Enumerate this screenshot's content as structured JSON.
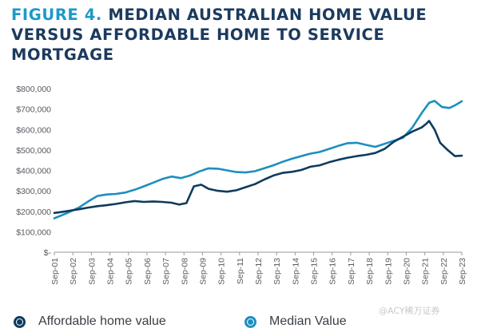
{
  "figure": {
    "label": "FIGURE 4.",
    "title": "MEDIAN AUSTRALIAN HOME VALUE VERSUS AFFORDABLE HOME TO SERVICE MORTGAGE"
  },
  "legend": {
    "affordable_label": "Affordable home value",
    "median_label": "Median Value"
  },
  "watermark": "@ACY稀万证券",
  "colors": {
    "affordable": "#0d3b5e",
    "median": "#1b8fbf",
    "title": "#1c3a5e",
    "title_accent": "#1c9ac9"
  },
  "chart_data": {
    "type": "line",
    "ylim": [
      0,
      800000
    ],
    "y_ticks": [
      0,
      100000,
      200000,
      300000,
      400000,
      500000,
      600000,
      700000,
      800000
    ],
    "y_tick_labels": [
      "$-",
      "$100,000",
      "$200,000",
      "$300,000",
      "$400,000",
      "$500,000",
      "$600,000",
      "$700,000",
      "$800,000"
    ],
    "x_tick_labels": [
      "Sep-01",
      "Sep-02",
      "Sep-03",
      "Sep-04",
      "Sep-05",
      "Sep-06",
      "Sep-07",
      "Sep-08",
      "Sep-09",
      "Sep-10",
      "Sep-11",
      "Sep-12",
      "Sep-13",
      "Sep-14",
      "Sep-15",
      "Sep-16",
      "Sep-17",
      "Sep-18",
      "Sep-19",
      "Sep-20",
      "Sep-21",
      "Sep-22",
      "Sep-23"
    ],
    "grid": false,
    "legend_position": "bottom",
    "series": [
      {
        "name": "Affordable home value",
        "points": [
          [
            2001.67,
            192000
          ],
          [
            2002.0,
            196000
          ],
          [
            2002.5,
            203000
          ],
          [
            2003.0,
            210000
          ],
          [
            2003.5,
            218000
          ],
          [
            2004.0,
            225000
          ],
          [
            2004.5,
            230000
          ],
          [
            2005.0,
            236000
          ],
          [
            2005.5,
            244000
          ],
          [
            2006.0,
            250000
          ],
          [
            2006.5,
            246000
          ],
          [
            2007.0,
            248000
          ],
          [
            2007.5,
            246000
          ],
          [
            2008.0,
            242000
          ],
          [
            2008.4,
            233000
          ],
          [
            2008.8,
            240000
          ],
          [
            2009.2,
            322000
          ],
          [
            2009.6,
            330000
          ],
          [
            2010.0,
            310000
          ],
          [
            2010.5,
            300000
          ],
          [
            2011.0,
            296000
          ],
          [
            2011.5,
            303000
          ],
          [
            2012.0,
            318000
          ],
          [
            2012.5,
            333000
          ],
          [
            2013.0,
            355000
          ],
          [
            2013.5,
            375000
          ],
          [
            2014.0,
            388000
          ],
          [
            2014.5,
            393000
          ],
          [
            2015.0,
            402000
          ],
          [
            2015.5,
            418000
          ],
          [
            2016.0,
            425000
          ],
          [
            2016.5,
            440000
          ],
          [
            2017.0,
            452000
          ],
          [
            2017.5,
            462000
          ],
          [
            2018.0,
            470000
          ],
          [
            2018.5,
            476000
          ],
          [
            2019.0,
            485000
          ],
          [
            2019.5,
            505000
          ],
          [
            2020.0,
            540000
          ],
          [
            2020.5,
            565000
          ],
          [
            2021.0,
            590000
          ],
          [
            2021.5,
            610000
          ],
          [
            2021.75,
            628000
          ],
          [
            2021.9,
            642000
          ],
          [
            2022.2,
            600000
          ],
          [
            2022.5,
            535000
          ],
          [
            2022.9,
            500000
          ],
          [
            2023.3,
            470000
          ],
          [
            2023.67,
            472000
          ]
        ]
      },
      {
        "name": "Median Value",
        "points": [
          [
            2001.67,
            166000
          ],
          [
            2002.0,
            178000
          ],
          [
            2002.5,
            197000
          ],
          [
            2003.0,
            218000
          ],
          [
            2003.5,
            248000
          ],
          [
            2004.0,
            275000
          ],
          [
            2004.5,
            282000
          ],
          [
            2005.0,
            285000
          ],
          [
            2005.5,
            292000
          ],
          [
            2006.0,
            305000
          ],
          [
            2006.5,
            322000
          ],
          [
            2007.0,
            340000
          ],
          [
            2007.5,
            358000
          ],
          [
            2008.0,
            370000
          ],
          [
            2008.5,
            362000
          ],
          [
            2009.0,
            375000
          ],
          [
            2009.5,
            395000
          ],
          [
            2010.0,
            410000
          ],
          [
            2010.5,
            408000
          ],
          [
            2011.0,
            400000
          ],
          [
            2011.5,
            392000
          ],
          [
            2012.0,
            390000
          ],
          [
            2012.5,
            396000
          ],
          [
            2013.0,
            410000
          ],
          [
            2013.5,
            425000
          ],
          [
            2014.0,
            442000
          ],
          [
            2014.5,
            457000
          ],
          [
            2015.0,
            470000
          ],
          [
            2015.5,
            482000
          ],
          [
            2016.0,
            490000
          ],
          [
            2016.5,
            505000
          ],
          [
            2017.0,
            520000
          ],
          [
            2017.5,
            533000
          ],
          [
            2018.0,
            535000
          ],
          [
            2018.5,
            525000
          ],
          [
            2019.0,
            515000
          ],
          [
            2019.5,
            530000
          ],
          [
            2020.0,
            545000
          ],
          [
            2020.5,
            560000
          ],
          [
            2021.0,
            610000
          ],
          [
            2021.5,
            680000
          ],
          [
            2021.9,
            730000
          ],
          [
            2022.2,
            740000
          ],
          [
            2022.6,
            710000
          ],
          [
            2023.0,
            705000
          ],
          [
            2023.3,
            718000
          ],
          [
            2023.67,
            738000
          ]
        ]
      }
    ]
  }
}
